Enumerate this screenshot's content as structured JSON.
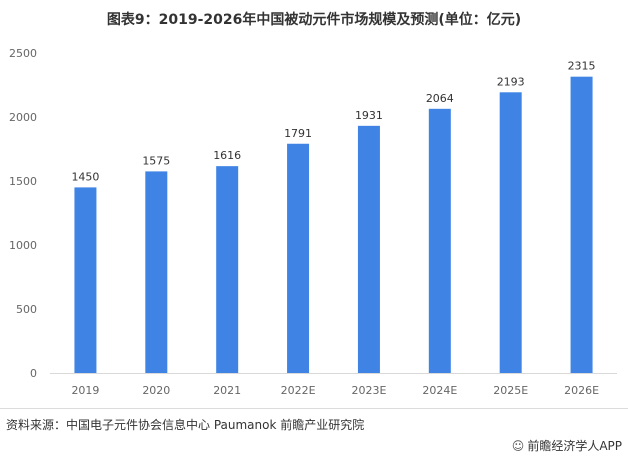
{
  "title": "图表9：2019-2026年中国被动元件市场规模及预测(单位：亿元)",
  "source": "资料来源：中国电子元件协会信息中心 Paumanok 前瞻产业研究院",
  "brand": {
    "icon": "qianzhan-logo-icon",
    "label": "前瞻经济学人APP"
  },
  "colors": {
    "bar": "#3f84e5",
    "axis": "#d9d9d9",
    "text": "#666666"
  },
  "chart_data": {
    "type": "bar",
    "title": "图表9：2019-2026年中国被动元件市场规模及预测(单位：亿元)",
    "xlabel": "",
    "ylabel": "",
    "categories": [
      "2019",
      "2020",
      "2021",
      "2022E",
      "2023E",
      "2024E",
      "2025E",
      "2026E"
    ],
    "values": [
      1450,
      1575,
      1616,
      1791,
      1931,
      2064,
      2193,
      2315
    ],
    "data_labels": [
      "1450",
      "1575",
      "1616",
      "1791",
      "1931",
      "2064",
      "2193",
      "2315"
    ],
    "ylim": [
      0,
      2500
    ],
    "yticks": [
      "0",
      "500",
      "1000",
      "1500",
      "2000",
      "2500"
    ],
    "grid": false,
    "legend": "none"
  }
}
